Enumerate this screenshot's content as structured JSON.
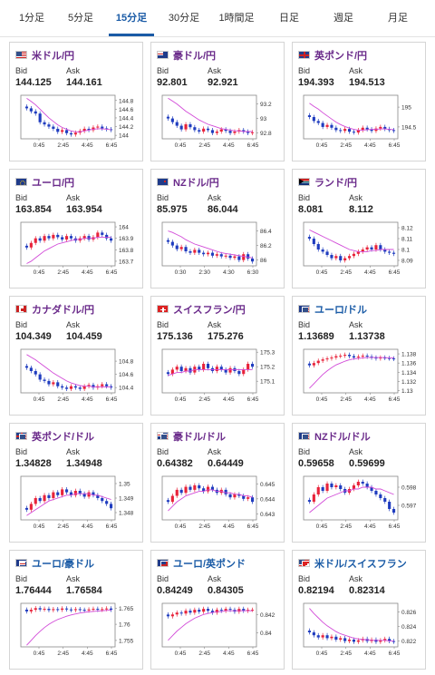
{
  "tabs": [
    {
      "label": "1分足",
      "active": false
    },
    {
      "label": "5分足",
      "active": false
    },
    {
      "label": "15分足",
      "active": true
    },
    {
      "label": "30分足",
      "active": false
    },
    {
      "label": "1時間足",
      "active": false
    },
    {
      "label": "日足",
      "active": false
    },
    {
      "label": "週足",
      "active": false
    },
    {
      "label": "月足",
      "active": false
    }
  ],
  "labels": {
    "bid": "Bid",
    "ask": "Ask"
  },
  "cards": [
    {
      "pair": "米ドル/円",
      "bid": "144.125",
      "ask": "144.161",
      "flag": "us",
      "x_ticks": [
        "0:45",
        "2:45",
        "4:45",
        "6:45"
      ],
      "y_ticks": [
        "144.8",
        "144.6",
        "144.4",
        "144.2",
        "144"
      ],
      "chart_data": {
        "type": "candlestick",
        "y_range": [
          143.92,
          144.92
        ],
        "closes": [
          144.62,
          144.55,
          144.5,
          144.3,
          144.25,
          144.2,
          144.15,
          144.08,
          144.12,
          144.05,
          144.02,
          144.06,
          144.1,
          144.15,
          144.12,
          144.18,
          144.2,
          144.16,
          144.14,
          144.12
        ],
        "ma": [
          144.85,
          144.78,
          144.7,
          144.6,
          144.5,
          144.4,
          144.32,
          144.24,
          144.18,
          144.14,
          144.1,
          144.08,
          144.08,
          144.1,
          144.12,
          144.14,
          144.15,
          144.15,
          144.14,
          144.13
        ]
      }
    },
    {
      "pair": "豪ドル/円",
      "bid": "92.801",
      "ask": "92.921",
      "flag": "au",
      "x_ticks": [
        "0:45",
        "2:45",
        "4:45",
        "6:45"
      ],
      "y_ticks": [
        "93.2",
        "93",
        "92.8"
      ],
      "chart_data": {
        "type": "candlestick",
        "y_range": [
          92.72,
          93.32
        ],
        "closes": [
          93.0,
          92.95,
          92.9,
          92.85,
          92.92,
          92.88,
          92.84,
          92.82,
          92.86,
          92.84,
          92.8,
          92.82,
          92.85,
          92.83,
          92.8,
          92.82,
          92.84,
          92.82,
          92.8,
          92.81
        ],
        "ma": [
          93.28,
          93.24,
          93.2,
          93.15,
          93.1,
          93.06,
          93.02,
          92.98,
          92.95,
          92.92,
          92.9,
          92.88,
          92.86,
          92.85,
          92.84,
          92.83,
          92.83,
          92.82,
          92.82,
          92.82
        ]
      }
    },
    {
      "pair": "英ポンド/円",
      "bid": "194.393",
      "ask": "194.513",
      "flag": "gb",
      "x_ticks": [
        "0:45",
        "2:45",
        "4:45",
        "6:45"
      ],
      "y_ticks": [
        "195",
        "194.5"
      ],
      "chart_data": {
        "type": "candlestick",
        "y_range": [
          194.2,
          195.3
        ],
        "closes": [
          194.75,
          194.65,
          194.6,
          194.5,
          194.55,
          194.48,
          194.42,
          194.4,
          194.45,
          194.38,
          194.36,
          194.42,
          194.48,
          194.44,
          194.4,
          194.46,
          194.5,
          194.45,
          194.42,
          194.4
        ],
        "ma": [
          195.1,
          195.02,
          194.95,
          194.86,
          194.78,
          194.7,
          194.62,
          194.56,
          194.51,
          194.47,
          194.44,
          194.42,
          194.42,
          194.43,
          194.44,
          194.44,
          194.45,
          194.45,
          194.44,
          194.43
        ]
      }
    },
    {
      "pair": "ユーロ/円",
      "bid": "163.854",
      "ask": "163.954",
      "flag": "eu",
      "x_ticks": [
        "0:45",
        "2:45",
        "4:45",
        "6:45"
      ],
      "y_ticks": [
        "164",
        "163.9",
        "163.8",
        "163.7"
      ],
      "chart_data": {
        "type": "candlestick",
        "y_range": [
          163.66,
          164.04
        ],
        "closes": [
          163.82,
          163.86,
          163.9,
          163.88,
          163.92,
          163.9,
          163.93,
          163.91,
          163.89,
          163.92,
          163.9,
          163.88,
          163.9,
          163.92,
          163.89,
          163.91,
          163.95,
          163.93,
          163.9,
          163.88
        ],
        "ma": [
          163.68,
          163.7,
          163.73,
          163.76,
          163.79,
          163.81,
          163.83,
          163.85,
          163.86,
          163.87,
          163.88,
          163.89,
          163.89,
          163.9,
          163.9,
          163.9,
          163.91,
          163.91,
          163.91,
          163.91
        ]
      }
    },
    {
      "pair": "NZドル/円",
      "bid": "85.975",
      "ask": "86.044",
      "flag": "nz",
      "x_ticks": [
        "0:30",
        "2:30",
        "4:30",
        "6:30"
      ],
      "y_ticks": [
        "86.4",
        "86.2",
        "86"
      ],
      "chart_data": {
        "type": "candlestick",
        "y_range": [
          85.92,
          86.52
        ],
        "closes": [
          86.25,
          86.2,
          86.15,
          86.18,
          86.12,
          86.1,
          86.14,
          86.1,
          86.08,
          86.1,
          86.06,
          86.08,
          86.05,
          86.06,
          86.03,
          86.05,
          86.0,
          86.08,
          86.02,
          85.98
        ],
        "ma": [
          86.4,
          86.38,
          86.35,
          86.32,
          86.28,
          86.25,
          86.22,
          86.2,
          86.18,
          86.16,
          86.14,
          86.12,
          86.1,
          86.09,
          86.08,
          86.07,
          86.06,
          86.05,
          86.04,
          86.03
        ]
      }
    },
    {
      "pair": "ランド/円",
      "bid": "8.081",
      "ask": "8.112",
      "flag": "za",
      "x_ticks": [
        "0:45",
        "2:45",
        "4:45",
        "6:45"
      ],
      "y_ticks": [
        "8.12",
        "8.11",
        "8.1",
        "8.09"
      ],
      "chart_data": {
        "type": "candlestick",
        "y_range": [
          8.085,
          8.125
        ],
        "closes": [
          8.11,
          8.105,
          8.1,
          8.098,
          8.095,
          8.092,
          8.094,
          8.09,
          8.092,
          8.094,
          8.096,
          8.098,
          8.1,
          8.102,
          8.1,
          8.104,
          8.1,
          8.098,
          8.097,
          8.096
        ],
        "ma": [
          8.118,
          8.116,
          8.114,
          8.112,
          8.11,
          8.108,
          8.106,
          8.104,
          8.102,
          8.1,
          8.099,
          8.098,
          8.098,
          8.098,
          8.099,
          8.099,
          8.1,
          8.1,
          8.1,
          8.1
        ]
      }
    },
    {
      "pair": "カナダドル/円",
      "bid": "104.349",
      "ask": "104.459",
      "flag": "ca",
      "x_ticks": [
        "0:45",
        "2:45",
        "4:45",
        "6:45"
      ],
      "y_ticks": [
        "104.8",
        "104.6",
        "104.4"
      ],
      "chart_data": {
        "type": "candlestick",
        "y_range": [
          104.32,
          104.98
        ],
        "closes": [
          104.7,
          104.65,
          104.6,
          104.52,
          104.5,
          104.45,
          104.48,
          104.42,
          104.4,
          104.38,
          104.42,
          104.4,
          104.38,
          104.42,
          104.44,
          104.4,
          104.42,
          104.45,
          104.42,
          104.4
        ],
        "ma": [
          104.9,
          104.86,
          104.82,
          104.77,
          104.72,
          104.67,
          104.62,
          104.58,
          104.54,
          104.5,
          104.47,
          104.45,
          104.43,
          104.42,
          104.42,
          104.41,
          104.41,
          104.41,
          104.41,
          104.41
        ]
      }
    },
    {
      "pair": "スイスフラン/円",
      "bid": "175.136",
      "ask": "175.276",
      "flag": "ch",
      "x_ticks": [
        "0:45",
        "2:45",
        "4:45",
        "6:45"
      ],
      "y_ticks": [
        "175.3",
        "175.2",
        "175.1"
      ],
      "chart_data": {
        "type": "candlestick",
        "y_range": [
          175.02,
          175.32
        ],
        "closes": [
          175.15,
          175.18,
          175.2,
          175.17,
          175.19,
          175.16,
          175.2,
          175.18,
          175.22,
          175.19,
          175.17,
          175.2,
          175.18,
          175.16,
          175.19,
          175.17,
          175.15,
          175.18,
          175.22,
          175.2
        ],
        "ma": [
          175.14,
          175.15,
          175.16,
          175.16,
          175.17,
          175.17,
          175.18,
          175.18,
          175.18,
          175.18,
          175.18,
          175.18,
          175.18,
          175.18,
          175.18,
          175.18,
          175.18,
          175.18,
          175.18,
          175.18
        ]
      }
    },
    {
      "pair": "ユーロ/ドル",
      "bid": "1.13689",
      "ask": "1.13738",
      "flag": "eu_us",
      "x_ticks": [
        "0:45",
        "2:45",
        "4:45",
        "6:45"
      ],
      "y_ticks": [
        "1.138",
        "1.136",
        "1.134",
        "1.132",
        "1.13"
      ],
      "chart_data": {
        "type": "candlestick",
        "y_range": [
          1.1295,
          1.139
        ],
        "closes": [
          1.1355,
          1.136,
          1.1365,
          1.1368,
          1.137,
          1.1372,
          1.1375,
          1.1376,
          1.1378,
          1.1375,
          1.1372,
          1.1374,
          1.1376,
          1.1374,
          1.1372,
          1.137,
          1.1372,
          1.1371,
          1.137,
          1.1369
        ],
        "ma": [
          1.1305,
          1.1315,
          1.1325,
          1.1335,
          1.1343,
          1.135,
          1.1356,
          1.136,
          1.1364,
          1.1367,
          1.1369,
          1.137,
          1.1371,
          1.1372,
          1.1372,
          1.1372,
          1.1372,
          1.1372,
          1.1371,
          1.1371
        ]
      }
    },
    {
      "pair": "英ポンド/ドル",
      "bid": "1.34828",
      "ask": "1.34948",
      "flag": "gb_us",
      "x_ticks": [
        "0:45",
        "2:45",
        "4:45",
        "6:45"
      ],
      "y_ticks": [
        "1.35",
        "1.349",
        "1.348"
      ],
      "chart_data": {
        "type": "candlestick",
        "y_range": [
          1.3475,
          1.3505
        ],
        "closes": [
          1.3482,
          1.3486,
          1.349,
          1.3488,
          1.3492,
          1.349,
          1.3494,
          1.3492,
          1.3496,
          1.3494,
          1.3492,
          1.3495,
          1.3493,
          1.3491,
          1.3494,
          1.3492,
          1.349,
          1.3488,
          1.3486,
          1.3483
        ],
        "ma": [
          1.3478,
          1.348,
          1.3482,
          1.3484,
          1.3486,
          1.3488,
          1.3489,
          1.349,
          1.3491,
          1.3492,
          1.3492,
          1.3493,
          1.3493,
          1.3493,
          1.3493,
          1.3492,
          1.3492,
          1.3491,
          1.349,
          1.3489
        ]
      }
    },
    {
      "pair": "豪ドル/ドル",
      "bid": "0.64382",
      "ask": "0.64449",
      "flag": "au_us",
      "x_ticks": [
        "0:45",
        "2:45",
        "4:45",
        "6:45"
      ],
      "y_ticks": [
        "0.645",
        "0.644",
        "0.643"
      ],
      "chart_data": {
        "type": "candlestick",
        "y_range": [
          0.6426,
          0.6455
        ],
        "closes": [
          0.6438,
          0.6442,
          0.6446,
          0.6444,
          0.6448,
          0.6446,
          0.6449,
          0.6447,
          0.6445,
          0.6448,
          0.6446,
          0.6444,
          0.6446,
          0.6443,
          0.6441,
          0.6443,
          0.6442,
          0.644,
          0.6441,
          0.6438
        ],
        "ma": [
          0.6432,
          0.6435,
          0.6438,
          0.644,
          0.6442,
          0.6443,
          0.6444,
          0.6445,
          0.6445,
          0.6446,
          0.6446,
          0.6445,
          0.6445,
          0.6444,
          0.6444,
          0.6443,
          0.6443,
          0.6442,
          0.6442,
          0.6441
        ]
      }
    },
    {
      "pair": "NZドル/ドル",
      "bid": "0.59658",
      "ask": "0.59699",
      "flag": "nz_us",
      "x_ticks": [
        "0:45",
        "2:45",
        "4:45",
        "6:45"
      ],
      "y_ticks": [
        "0.598",
        "0.597"
      ],
      "chart_data": {
        "type": "candlestick",
        "y_range": [
          0.5962,
          0.5986
        ],
        "closes": [
          0.5972,
          0.5976,
          0.598,
          0.5978,
          0.5982,
          0.598,
          0.5981,
          0.5979,
          0.5977,
          0.5979,
          0.5981,
          0.5983,
          0.5982,
          0.598,
          0.5978,
          0.5976,
          0.5974,
          0.5972,
          0.5968,
          0.5966
        ],
        "ma": [
          0.5966,
          0.5968,
          0.597,
          0.5972,
          0.5974,
          0.5975,
          0.5976,
          0.5977,
          0.5978,
          0.5978,
          0.5979,
          0.5979,
          0.598,
          0.598,
          0.598,
          0.5979,
          0.5979,
          0.5978,
          0.5977,
          0.5976
        ]
      }
    },
    {
      "pair": "ユーロ/豪ドル",
      "bid": "1.76444",
      "ask": "1.76584",
      "flag": "eu_au",
      "x_ticks": [
        "0:45",
        "2:45",
        "4:45",
        "6:45"
      ],
      "y_ticks": [
        "1.765",
        "1.76",
        "1.755"
      ],
      "chart_data": {
        "type": "candlestick",
        "y_range": [
          1.753,
          1.7665
        ],
        "closes": [
          1.764,
          1.7645,
          1.765,
          1.7646,
          1.7648,
          1.7644,
          1.7647,
          1.7645,
          1.7649,
          1.7646,
          1.7644,
          1.7647,
          1.7645,
          1.7643,
          1.7646,
          1.7648,
          1.7645,
          1.7647,
          1.7649,
          1.7645
        ],
        "ma": [
          1.7535,
          1.755,
          1.7565,
          1.7578,
          1.759,
          1.76,
          1.7608,
          1.7615,
          1.762,
          1.7625,
          1.7629,
          1.7632,
          1.7635,
          1.7637,
          1.7639,
          1.764,
          1.7641,
          1.7642,
          1.7643,
          1.7644
        ]
      }
    },
    {
      "pair": "ユーロ/英ポンド",
      "bid": "0.84249",
      "ask": "0.84305",
      "flag": "eu_gb",
      "x_ticks": [
        "0:45",
        "2:45",
        "4:45",
        "6:45"
      ],
      "y_ticks": [
        "0.842",
        "0.84"
      ],
      "chart_data": {
        "type": "candlestick",
        "y_range": [
          0.8385,
          0.8432
        ],
        "closes": [
          0.8418,
          0.842,
          0.8422,
          0.8421,
          0.8424,
          0.8422,
          0.8425,
          0.8423,
          0.8426,
          0.8424,
          0.8422,
          0.8425,
          0.8424,
          0.8426,
          0.8425,
          0.8423,
          0.8426,
          0.8424,
          0.8425,
          0.8425
        ],
        "ma": [
          0.8392,
          0.8397,
          0.8402,
          0.8406,
          0.841,
          0.8413,
          0.8416,
          0.8418,
          0.842,
          0.8421,
          0.8422,
          0.8423,
          0.8423,
          0.8424,
          0.8424,
          0.8424,
          0.8424,
          0.8424,
          0.8424,
          0.8424
        ]
      }
    },
    {
      "pair": "米ドル/スイスフラン",
      "bid": "0.82194",
      "ask": "0.82314",
      "flag": "us_ch",
      "x_ticks": [
        "0:45",
        "2:45",
        "4:45",
        "6:45"
      ],
      "y_ticks": [
        "0.826",
        "0.824",
        "0.822"
      ],
      "chart_data": {
        "type": "candlestick",
        "y_range": [
          0.8212,
          0.8272
        ],
        "closes": [
          0.8232,
          0.8228,
          0.8225,
          0.8228,
          0.8224,
          0.8226,
          0.8222,
          0.8224,
          0.822,
          0.8222,
          0.8219,
          0.8221,
          0.8223,
          0.822,
          0.8222,
          0.8219,
          0.8221,
          0.8223,
          0.822,
          0.8219
        ],
        "ma": [
          0.8265,
          0.8258,
          0.8252,
          0.8246,
          0.8241,
          0.8237,
          0.8233,
          0.823,
          0.8228,
          0.8226,
          0.8224,
          0.8223,
          0.8222,
          0.8222,
          0.8221,
          0.8221,
          0.8221,
          0.8221,
          0.822,
          0.822
        ]
      }
    }
  ]
}
